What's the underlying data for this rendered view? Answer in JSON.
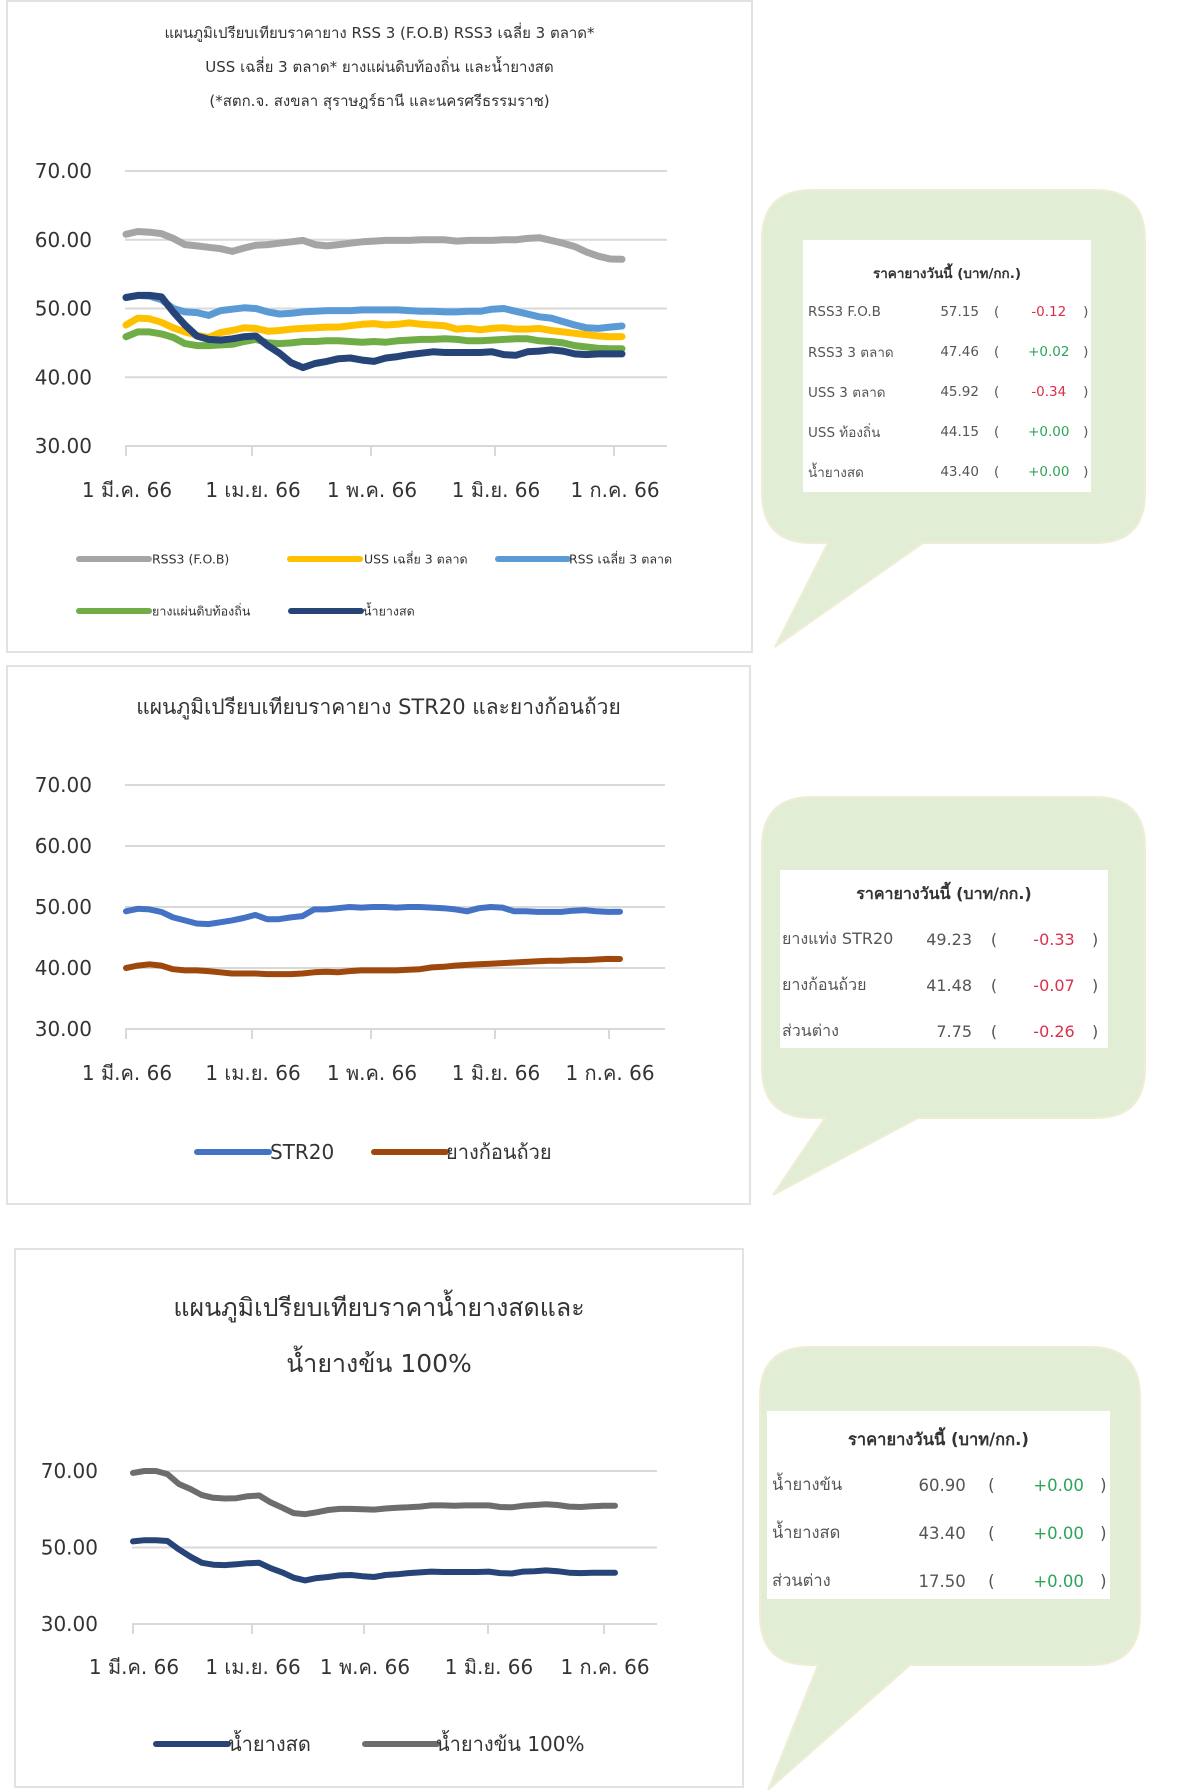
{
  "colors": {
    "bubble_fill": "#e2edd5",
    "negative": "#d9304a",
    "positive": "#2fa35a",
    "gridline": "#d9d9d9"
  },
  "chart_data": [
    {
      "type": "line",
      "title": "แผนภูมิเปรียบเทียบราคายาง RSS 3 (F.O.B) RSS3 เฉลี่ย 3 ตลาด* USS เฉลี่ย 3 ตลาด* ยางแผ่นดิบท้องถิ่น และน้ำยางสด (*สตก.จ. สงขลา สุราษฎร์ธานี และนครศรีธรรมราช)",
      "title_lines": [
        "แผนภูมิเปรียบเทียบราคายาง RSS 3 (F.O.B) RSS3 เฉลี่ย 3 ตลาด*",
        "USS เฉลี่ย 3 ตลาด* ยางแผ่นดิบท้องถิ่น และน้ำยางสด",
        "(*สตก.จ. สงขลา สุราษฎร์ธานี และนครศรีธรรมราช)"
      ],
      "xlabel": "",
      "ylabel": "",
      "ylim": [
        30,
        70
      ],
      "yticks": [
        "70.00",
        "60.00",
        "50.00",
        "40.00",
        "30.00"
      ],
      "xticks": [
        "1 มี.ค. 66",
        "1 เม.ย. 66",
        "1 พ.ค. 66",
        "1 มิ.ย. 66",
        "1 ก.ค. 66"
      ],
      "grid": true,
      "legend_position": "bottom",
      "x": [
        0,
        3,
        6,
        9,
        12,
        15,
        18,
        21,
        24,
        27,
        30,
        33,
        36,
        39,
        42,
        45,
        48,
        51,
        54,
        57,
        60,
        63,
        66,
        69,
        72,
        75,
        78,
        81,
        84,
        87,
        90,
        93,
        96,
        99,
        102,
        105,
        108,
        111,
        114,
        117,
        120,
        123,
        126
      ],
      "series": [
        {
          "name": "RSS3 (F.O.B)",
          "color": "#a5a5a5",
          "values": [
            60.8,
            61.2,
            61.1,
            60.9,
            60.2,
            59.3,
            59.1,
            58.9,
            58.7,
            58.3,
            58.8,
            59.2,
            59.3,
            59.5,
            59.7,
            59.9,
            59.3,
            59.1,
            59.3,
            59.5,
            59.7,
            59.8,
            59.9,
            59.9,
            59.9,
            60.0,
            60.0,
            60.0,
            59.8,
            59.9,
            59.9,
            59.9,
            60.0,
            60.0,
            60.2,
            60.3,
            59.9,
            59.5,
            59.0,
            58.2,
            57.6,
            57.2,
            57.15
          ]
        },
        {
          "name": "USS เฉลี่ย 3 ตลาด",
          "color": "#ffc000",
          "values": [
            47.6,
            48.6,
            48.5,
            48.0,
            47.2,
            46.6,
            46.1,
            45.8,
            46.5,
            46.8,
            47.2,
            47.1,
            46.7,
            46.8,
            47.0,
            47.1,
            47.2,
            47.3,
            47.3,
            47.5,
            47.7,
            47.8,
            47.6,
            47.7,
            47.9,
            47.7,
            47.6,
            47.5,
            47.0,
            47.1,
            46.9,
            47.1,
            47.2,
            47.0,
            47.0,
            47.1,
            46.8,
            46.6,
            46.4,
            46.2,
            46.0,
            45.9,
            45.92
          ]
        },
        {
          "name": "RSS เฉลี่ย 3 ตลาด",
          "color": "#5b9bd5",
          "values": [
            51.6,
            51.9,
            51.8,
            51.3,
            50.0,
            49.5,
            49.4,
            49.0,
            49.7,
            49.9,
            50.1,
            50.0,
            49.5,
            49.2,
            49.3,
            49.5,
            49.6,
            49.7,
            49.7,
            49.7,
            49.8,
            49.8,
            49.8,
            49.8,
            49.7,
            49.6,
            49.6,
            49.5,
            49.5,
            49.6,
            49.6,
            49.9,
            50.0,
            49.6,
            49.2,
            48.8,
            48.6,
            48.1,
            47.6,
            47.2,
            47.1,
            47.3,
            47.46
          ]
        },
        {
          "name": "ยางแผ่นดิบท้องถิ่น",
          "color": "#70ad47",
          "values": [
            45.9,
            46.6,
            46.6,
            46.3,
            45.8,
            44.9,
            44.6,
            44.6,
            44.7,
            44.8,
            45.2,
            45.5,
            45.0,
            44.9,
            45.0,
            45.2,
            45.2,
            45.3,
            45.3,
            45.2,
            45.1,
            45.2,
            45.1,
            45.3,
            45.4,
            45.5,
            45.5,
            45.6,
            45.5,
            45.3,
            45.3,
            45.4,
            45.5,
            45.6,
            45.6,
            45.3,
            45.2,
            45.0,
            44.6,
            44.4,
            44.2,
            44.15,
            44.15
          ]
        },
        {
          "name": "น้ำยางสด",
          "color": "#264478",
          "values": [
            51.6,
            51.9,
            51.9,
            51.7,
            49.5,
            47.6,
            46.0,
            45.5,
            45.4,
            45.6,
            45.9,
            46.0,
            44.6,
            43.5,
            42.1,
            41.4,
            42.0,
            42.3,
            42.7,
            42.8,
            42.5,
            42.3,
            42.8,
            43.0,
            43.3,
            43.5,
            43.7,
            43.6,
            43.6,
            43.6,
            43.6,
            43.7,
            43.3,
            43.2,
            43.7,
            43.8,
            44.0,
            43.8,
            43.4,
            43.3,
            43.4,
            43.4,
            43.4
          ]
        }
      ]
    },
    {
      "type": "line",
      "title": "แผนภูมิเปรียบเทียบราคายาง STR20 และยางก้อนถ้วย",
      "title_lines": [
        "แผนภูมิเปรียบเทียบราคายาง STR20 และยางก้อนถ้วย"
      ],
      "xlabel": "",
      "ylabel": "",
      "ylim": [
        30,
        70
      ],
      "yticks": [
        "70.00",
        "60.00",
        "50.00",
        "40.00",
        "30.00"
      ],
      "xticks": [
        "1 มี.ค. 66",
        "1 เม.ย. 66",
        "1 พ.ค. 66",
        "1 มิ.ย. 66",
        "1 ก.ค. 66"
      ],
      "grid": true,
      "legend_position": "bottom",
      "x": [
        0,
        3,
        6,
        9,
        12,
        15,
        18,
        21,
        24,
        27,
        30,
        33,
        36,
        39,
        42,
        45,
        48,
        51,
        54,
        57,
        60,
        63,
        66,
        69,
        72,
        75,
        78,
        81,
        84,
        87,
        90,
        93,
        96,
        99,
        102,
        105,
        108,
        111,
        114,
        117,
        120,
        123,
        126
      ],
      "series": [
        {
          "name": "STR20",
          "color": "#4472c4",
          "values": [
            49.3,
            49.7,
            49.6,
            49.2,
            48.3,
            47.8,
            47.3,
            47.2,
            47.5,
            47.8,
            48.2,
            48.7,
            48.0,
            48.0,
            48.3,
            48.5,
            49.6,
            49.6,
            49.8,
            50.0,
            49.9,
            50.0,
            50.0,
            49.9,
            50.0,
            50.0,
            49.9,
            49.8,
            49.6,
            49.3,
            49.8,
            50.0,
            49.9,
            49.3,
            49.3,
            49.2,
            49.2,
            49.2,
            49.4,
            49.5,
            49.3,
            49.2,
            49.23
          ]
        },
        {
          "name": "ยางก้อนถ้วย",
          "color": "#9e480e",
          "values": [
            40.0,
            40.4,
            40.6,
            40.4,
            39.8,
            39.6,
            39.6,
            39.5,
            39.3,
            39.1,
            39.1,
            39.1,
            39.0,
            39.0,
            39.0,
            39.1,
            39.3,
            39.4,
            39.3,
            39.5,
            39.6,
            39.6,
            39.6,
            39.6,
            39.7,
            39.8,
            40.1,
            40.2,
            40.4,
            40.5,
            40.6,
            40.7,
            40.8,
            40.9,
            41.0,
            41.1,
            41.2,
            41.2,
            41.3,
            41.3,
            41.4,
            41.5,
            41.48
          ]
        }
      ]
    },
    {
      "type": "line",
      "title": "แผนภูมิเปรียบเทียบราคาน้ำยางสดและ น้ำยางข้น 100%",
      "title_lines": [
        "แผนภูมิเปรียบเทียบราคาน้ำยางสดและ",
        "น้ำยางข้น 100%"
      ],
      "xlabel": "",
      "ylabel": "",
      "ylim": [
        30,
        70
      ],
      "yticks": [
        "70.00",
        "50.00",
        "30.00"
      ],
      "xticks": [
        "1 มี.ค. 66",
        "1 เม.ย. 66",
        "1 พ.ค. 66",
        "1 มิ.ย. 66",
        "1 ก.ค. 66"
      ],
      "grid": true,
      "legend_position": "bottom",
      "x": [
        0,
        3,
        6,
        9,
        12,
        15,
        18,
        21,
        24,
        27,
        30,
        33,
        36,
        39,
        42,
        45,
        48,
        51,
        54,
        57,
        60,
        63,
        66,
        69,
        72,
        75,
        78,
        81,
        84,
        87,
        90,
        93,
        96,
        99,
        102,
        105,
        108,
        111,
        114,
        117,
        120,
        123,
        126
      ],
      "series": [
        {
          "name": "น้ำยางสด",
          "color": "#264478",
          "values": [
            51.6,
            51.9,
            51.9,
            51.7,
            49.5,
            47.6,
            46.0,
            45.5,
            45.4,
            45.6,
            45.9,
            46.0,
            44.6,
            43.5,
            42.1,
            41.4,
            42.0,
            42.3,
            42.7,
            42.8,
            42.5,
            42.3,
            42.8,
            43.0,
            43.3,
            43.5,
            43.7,
            43.6,
            43.6,
            43.6,
            43.6,
            43.7,
            43.3,
            43.2,
            43.7,
            43.8,
            44.0,
            43.8,
            43.4,
            43.3,
            43.4,
            43.4,
            43.4
          ]
        },
        {
          "name": "น้ำยางข้น 100%",
          "color": "#6d6d6d",
          "values": [
            69.5,
            70.0,
            70.0,
            69.2,
            66.6,
            65.3,
            63.7,
            63.0,
            62.8,
            62.9,
            63.4,
            63.6,
            61.8,
            60.4,
            59.0,
            58.7,
            59.2,
            59.8,
            60.1,
            60.1,
            60.0,
            59.9,
            60.2,
            60.4,
            60.5,
            60.7,
            61.0,
            61.0,
            60.9,
            61.0,
            61.0,
            61.0,
            60.6,
            60.5,
            60.9,
            61.1,
            61.3,
            61.1,
            60.7,
            60.6,
            60.8,
            60.9,
            60.9
          ]
        }
      ]
    }
  ],
  "price_boxes": [
    {
      "heading": "ราคายางวันนี้ (บาท/กก.)",
      "rows": [
        {
          "name": "RSS3 F.O.B",
          "price": "57.15",
          "open": "(",
          "change": "-0.12",
          "close": ")",
          "dir": "neg"
        },
        {
          "name": "RSS3 3 ตลาด",
          "price": "47.46",
          "open": "(",
          "change": "+0.02",
          "close": ")",
          "dir": "pos"
        },
        {
          "name": "USS 3 ตลาด",
          "price": "45.92",
          "open": "(",
          "change": "-0.34",
          "close": ")",
          "dir": "neg"
        },
        {
          "name": "USS ท้องถิ่น",
          "price": "44.15",
          "open": "(",
          "change": "+0.00",
          "close": ")",
          "dir": "pos"
        },
        {
          "name": "น้ำยางสด",
          "price": "43.40",
          "open": "(",
          "change": "+0.00",
          "close": ")",
          "dir": "pos"
        }
      ]
    },
    {
      "heading": "ราคายางวันนี้ (บาท/กก.)",
      "rows": [
        {
          "name": "ยางแท่ง STR20",
          "price": "49.23",
          "open": "(",
          "change": "-0.33",
          "close": ")",
          "dir": "neg"
        },
        {
          "name": "ยางก้อนถ้วย",
          "price": "41.48",
          "open": "(",
          "change": "-0.07",
          "close": ")",
          "dir": "neg"
        },
        {
          "name": "ส่วนต่าง",
          "price": "7.75",
          "open": "(",
          "change": "-0.26",
          "close": ")",
          "dir": "neg"
        }
      ]
    },
    {
      "heading": "ราคายางวันนี้ (บาท/กก.)",
      "rows": [
        {
          "name": "น้ำยางข้น",
          "price": "60.90",
          "open": "(",
          "change": "+0.00",
          "close": ")",
          "dir": "pos"
        },
        {
          "name": "น้ำยางสด",
          "price": "43.40",
          "open": "(",
          "change": "+0.00",
          "close": ")",
          "dir": "pos"
        },
        {
          "name": "ส่วนต่าง",
          "price": "17.50",
          "open": "(",
          "change": "+0.00",
          "close": ")",
          "dir": "pos"
        }
      ]
    }
  ]
}
